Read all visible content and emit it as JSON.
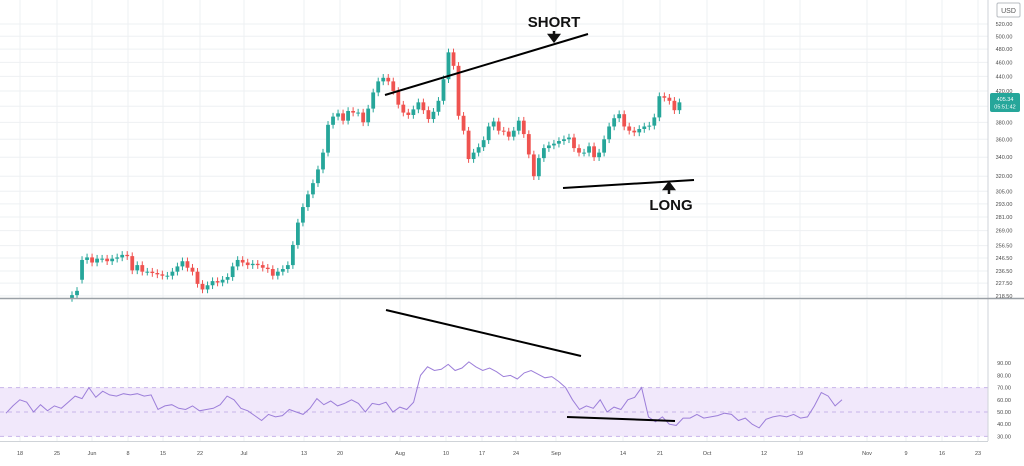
{
  "currency_label": "USD",
  "price_badge": {
    "price": "405.34",
    "countdown": "05:51:42"
  },
  "colors": {
    "up": "#26a69a",
    "down": "#ef5350",
    "rsi_line": "#9c7ed9",
    "rsi_band": "#f1e8fb",
    "trend": "#000000",
    "grid": "#eef0f3",
    "axis_text": "#4a4a4a"
  },
  "annotations": {
    "short": "SHORT",
    "long": "LONG"
  },
  "chart_data": [
    {
      "type": "candlestick",
      "title": "",
      "xlabel": "",
      "ylabel": "",
      "x_ticks": [
        "18",
        "25",
        "Jun",
        "8",
        "15",
        "22",
        "Jul",
        "13",
        "20",
        "Aug",
        "10",
        "17",
        "24",
        "Sep",
        "14",
        "21",
        "Oct",
        "12",
        "19",
        "Nov",
        "9",
        "16",
        "23"
      ],
      "y_ticks": [
        218.5,
        227.5,
        236.5,
        246.5,
        256.5,
        269.0,
        281.0,
        293.0,
        305.0,
        320.0,
        340.0,
        360.0,
        380.0,
        400.0,
        420.0,
        440.0,
        460.0,
        480.0,
        500.0,
        520.0
      ],
      "ylim": [
        217,
        530
      ],
      "scale": "log",
      "grid": true,
      "series": [
        {
          "close": [
            219,
            222,
            245,
            247,
            243,
            246,
            246,
            244,
            246,
            247,
            249,
            248,
            237,
            241,
            236,
            236,
            235,
            234,
            233,
            233,
            236,
            240,
            244,
            239,
            236,
            227,
            223,
            226,
            229,
            228,
            230,
            232,
            240,
            245,
            243,
            241,
            242,
            241,
            239,
            238,
            233,
            236,
            238,
            241,
            257,
            276,
            290,
            302,
            313,
            327,
            345,
            377,
            387,
            391,
            382,
            394,
            392,
            392,
            380,
            397,
            418,
            433,
            438,
            433,
            420,
            402,
            392,
            389,
            396,
            405,
            395,
            384,
            393,
            407,
            436,
            475,
            455,
            388,
            370,
            338,
            345,
            351,
            359,
            375,
            381,
            370,
            369,
            363,
            370,
            382,
            366,
            343,
            320,
            339,
            350,
            353,
            355,
            358,
            360,
            362,
            350,
            345,
            345,
            352,
            340,
            345,
            360,
            375,
            385,
            390,
            375,
            370,
            368,
            372,
            375,
            376,
            386,
            413,
            411,
            407,
            395,
            405
          ]
        },
        {
          "open": [
            217,
            219,
            230,
            245,
            247,
            243,
            246,
            246,
            244,
            246,
            247,
            249,
            248,
            237,
            241,
            236,
            236,
            235,
            234,
            233,
            233,
            236,
            240,
            244,
            239,
            236,
            227,
            223,
            226,
            229,
            228,
            230,
            232,
            240,
            245,
            243,
            241,
            242,
            241,
            239,
            238,
            233,
            236,
            238,
            241,
            257,
            276,
            290,
            302,
            313,
            327,
            345,
            377,
            387,
            391,
            382,
            394,
            392,
            392,
            380,
            397,
            418,
            433,
            438,
            433,
            420,
            402,
            392,
            389,
            396,
            405,
            395,
            384,
            393,
            407,
            436,
            475,
            455,
            388,
            370,
            338,
            345,
            351,
            359,
            375,
            381,
            370,
            369,
            363,
            370,
            382,
            366,
            343,
            320,
            339,
            350,
            353,
            355,
            358,
            360,
            362,
            350,
            345,
            345,
            352,
            340,
            345,
            360,
            375,
            385,
            390,
            375,
            370,
            368,
            372,
            375,
            376,
            386,
            413,
            411,
            407,
            395
          ]
        }
      ]
    },
    {
      "type": "line",
      "title": "",
      "xlabel": "",
      "ylabel": "",
      "y_ticks": [
        30.0,
        40.0,
        50.0,
        60.0,
        70.0,
        80.0,
        90.0
      ],
      "ylim": [
        25,
        97
      ],
      "band": [
        30,
        70
      ],
      "series": [
        {
          "values": [
            49,
            55,
            60,
            58,
            50,
            56,
            51,
            55,
            53,
            58,
            63,
            61,
            70,
            62,
            67,
            64,
            63,
            65,
            64,
            65,
            63,
            64,
            52,
            55,
            56,
            53,
            52,
            55,
            51,
            52,
            53,
            56,
            63,
            60,
            53,
            51,
            47,
            43,
            48,
            46,
            47,
            52,
            50,
            48,
            53,
            61,
            56,
            59,
            55,
            57,
            60,
            57,
            50,
            57,
            56,
            58,
            50,
            54,
            52,
            58,
            80,
            87,
            84,
            85,
            89,
            84,
            86,
            91,
            87,
            84,
            86,
            83,
            79,
            80,
            77,
            82,
            84,
            81,
            78,
            79,
            75,
            70,
            60,
            52,
            55,
            53,
            60,
            50,
            54,
            52,
            60,
            62,
            70,
            46,
            42,
            46,
            40,
            39,
            45,
            45,
            48,
            45,
            46,
            47,
            49,
            48,
            43,
            45,
            40,
            37,
            44,
            46,
            47,
            46,
            48,
            45,
            46,
            55,
            66,
            63,
            55,
            60
          ]
        }
      ]
    }
  ]
}
